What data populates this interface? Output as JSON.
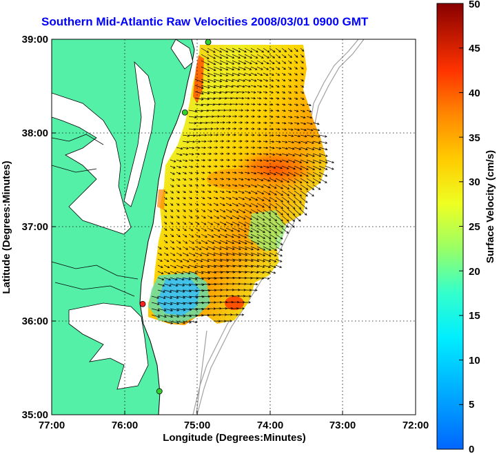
{
  "title": "Southern Mid-Atlantic Raw Velocities 2008/03/01 0900 GMT",
  "x_axis": {
    "label": "Longitude (Degrees:Minutes)",
    "ticks": [
      "77:00",
      "76:00",
      "75:00",
      "74:00",
      "73:00",
      "72:00"
    ]
  },
  "y_axis": {
    "label": "Latitude (Degrees:Minutes)",
    "ticks": [
      "39:00",
      "38:00",
      "37:00",
      "36:00",
      "35:00"
    ]
  },
  "colorbar": {
    "label": "Surface Velocity (cm/s)",
    "ticks": [
      "50",
      "45",
      "40",
      "35",
      "30",
      "25",
      "20",
      "15",
      "10",
      "5",
      "0"
    ],
    "min": 0,
    "max": 50
  },
  "map": {
    "lon_range": [
      -77,
      -72
    ],
    "lat_range": [
      35,
      39
    ],
    "land_color": "#55f0a8",
    "ocean_color": "#ffffff",
    "coast_color": "#000000",
    "bathymetry_color": "#a0a0a0",
    "grid": "dotted",
    "stations": [
      {
        "lon": -74.85,
        "lat": 38.97,
        "color": "#30d030"
      },
      {
        "lon": -75.17,
        "lat": 38.22,
        "color": "#30d030"
      },
      {
        "lon": -75.75,
        "lat": 36.18,
        "color": "#ff2020"
      },
      {
        "lon": -75.52,
        "lat": 35.25,
        "color": "#30d030"
      }
    ]
  }
}
